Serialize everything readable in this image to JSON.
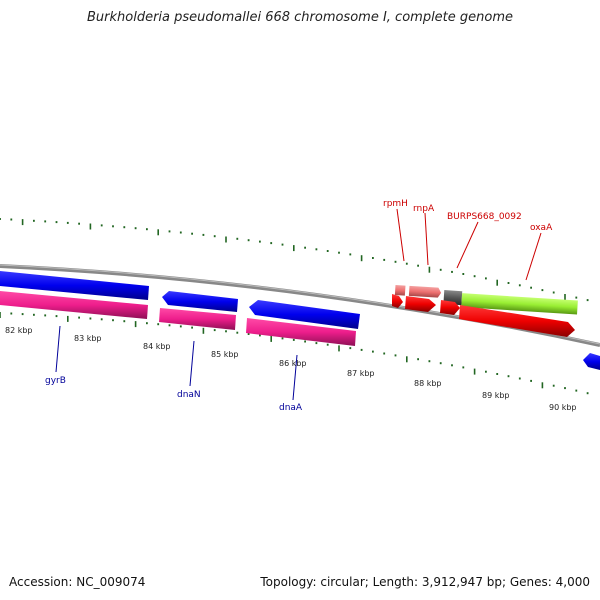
{
  "title": "Burkholderia pseudomallei 668 chromosome I, complete genome",
  "footer": {
    "accession": "Accession: NC_009074",
    "summary": "Topology: circular; Length: 3,912,947 bp; Genes: 4,000"
  },
  "scale": {
    "tick_labels": [
      "82 kbp",
      "83 kbp",
      "84 kbp",
      "85 kbp",
      "86 kbp",
      "87 kbp",
      "88 kbp",
      "89 kbp",
      "90 kbp"
    ]
  },
  "gene_labels": {
    "forward": [
      "rpmH",
      "rnpA",
      "BURPS668_0092",
      "oxaA"
    ],
    "reverse": [
      "gyrB",
      "dnaN",
      "dnaA"
    ]
  },
  "colors": {
    "forward_label": "#cc0000",
    "reverse_label": "#000099",
    "cds_blue": "#0000ee",
    "cds_pink": "#ee1e8c",
    "cds_red": "#ee0000",
    "rna_salmon": "#ee7070",
    "misc_gray": "#555555",
    "green": "#99ee33",
    "backbone": "#888888",
    "tick_green": "#226622"
  }
}
